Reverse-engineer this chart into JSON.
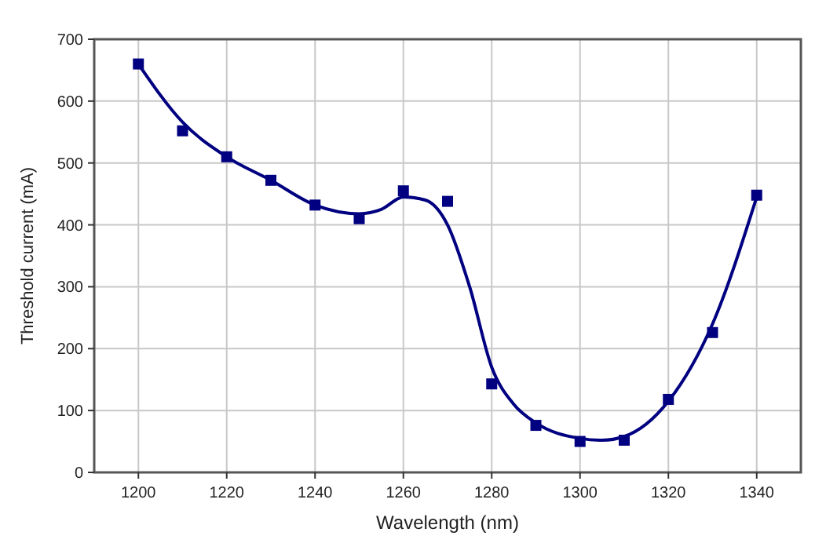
{
  "chart_data": {
    "type": "scatter",
    "xlabel": "Wavelength (nm)",
    "ylabel": "Threshold current (mA)",
    "xlim": [
      1190,
      1350
    ],
    "xticks": [
      1200,
      1220,
      1240,
      1260,
      1280,
      1300,
      1320,
      1340
    ],
    "ylim": [
      0,
      700
    ],
    "yticks": [
      0,
      100,
      200,
      300,
      400,
      500,
      600,
      700
    ],
    "grid": true,
    "marker": "square",
    "series": [
      {
        "color": "#000080",
        "x": [
          1200,
          1210,
          1220,
          1230,
          1240,
          1250,
          1260,
          1270,
          1280,
          1290,
          1300,
          1310,
          1320,
          1330,
          1340
        ],
        "values": [
          660,
          552,
          510,
          472,
          432,
          410,
          455,
          438,
          143,
          76,
          50,
          52,
          118,
          226,
          448
        ]
      },
      {
        "type": "line",
        "color": "#000080",
        "marker": "none",
        "line_style": "solid",
        "x": [
          1200,
          1210,
          1220,
          1230,
          1240,
          1250,
          1255,
          1260,
          1265,
          1270,
          1275,
          1280,
          1285,
          1290,
          1300,
          1305,
          1310,
          1320,
          1330,
          1340
        ],
        "values": [
          660,
          566,
          510,
          472,
          432,
          418,
          425,
          445,
          440,
          400,
          300,
          170,
          110,
          80,
          55,
          52,
          58,
          115,
          240,
          445
        ]
      }
    ]
  }
}
